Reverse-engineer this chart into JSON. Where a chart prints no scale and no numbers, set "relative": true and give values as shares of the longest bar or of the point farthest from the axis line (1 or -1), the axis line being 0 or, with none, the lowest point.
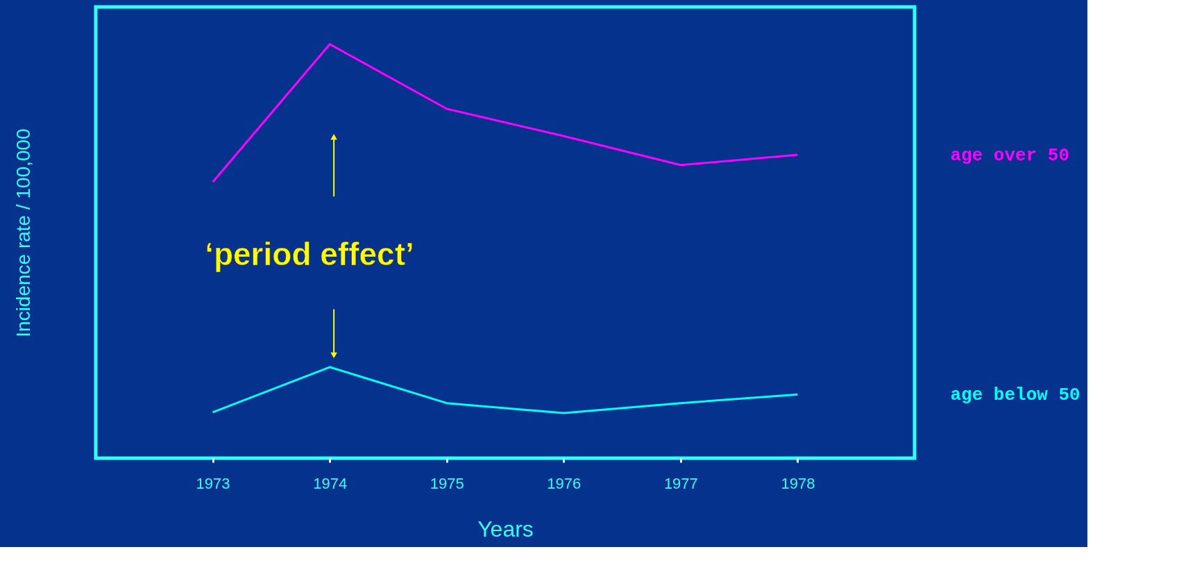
{
  "chart_data": {
    "type": "line",
    "relative": true,
    "xlabel": "Years",
    "ylabel": "Incidence rate / 100,000",
    "x": [
      1973,
      1974,
      1975,
      1976,
      1977,
      1978
    ],
    "xlim": [
      1972,
      1979
    ],
    "xticks": [
      1973,
      1974,
      1975,
      1976,
      1977,
      1978
    ],
    "series": [
      {
        "name": "age over 50",
        "color": "#ff00ff",
        "values": [
          0.667,
          1,
          0.844,
          0.778,
          0.708,
          0.733
        ]
      },
      {
        "name": "age below 50",
        "color": "#00ffff",
        "values": [
          0.111,
          0.22,
          0.133,
          0.109,
          0.133,
          0.154
        ]
      }
    ],
    "annotations": [
      "‘period effect’"
    ],
    "tick_labels": "x",
    "grid": false,
    "marker": "none",
    "line_style": "solid"
  }
}
